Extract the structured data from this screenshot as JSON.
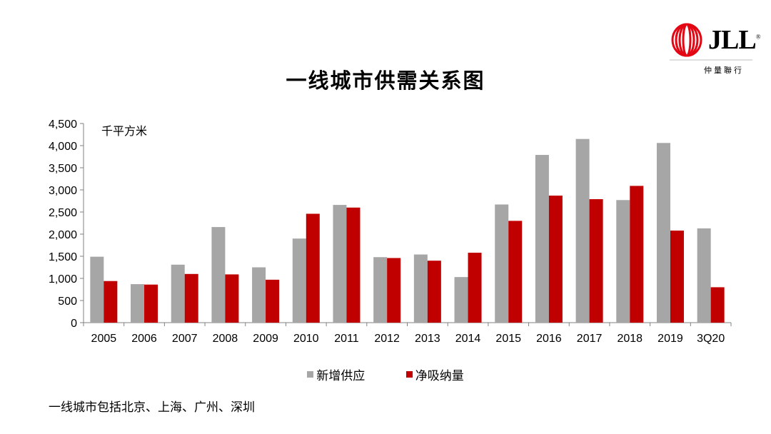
{
  "title": "一线城市供需关系图",
  "logo": {
    "mark_color": "#e30613",
    "text": "JLL",
    "registered": "®",
    "subtitle": "仲量聯行"
  },
  "footnote": "一线城市包括北京、上海、广州、深圳",
  "colors": {
    "supply": "#a6a6a6",
    "absorption": "#c00000",
    "axis": "#808080"
  },
  "chart_data": {
    "type": "bar",
    "unit_label": "千平方米",
    "categories": [
      "2005",
      "2006",
      "2007",
      "2008",
      "2009",
      "2010",
      "2011",
      "2012",
      "2013",
      "2014",
      "2015",
      "2016",
      "2017",
      "2018",
      "2019",
      "3Q20"
    ],
    "series": [
      {
        "name": "新增供应",
        "values": [
          1490,
          870,
          1310,
          2160,
          1250,
          1900,
          2660,
          1480,
          1540,
          1030,
          2670,
          3790,
          4150,
          2770,
          4060,
          2130
        ]
      },
      {
        "name": "净吸纳量",
        "values": [
          940,
          860,
          1100,
          1090,
          970,
          2460,
          2600,
          1460,
          1400,
          1580,
          2300,
          2870,
          2790,
          3090,
          2080,
          800
        ]
      }
    ],
    "ylim": [
      0,
      4500
    ],
    "yticks": [
      "0",
      "500",
      "1,000",
      "1,500",
      "2,000",
      "2,500",
      "3,000",
      "3,500",
      "4,000",
      "4,500"
    ],
    "legend_position": "bottom",
    "grid": false
  }
}
